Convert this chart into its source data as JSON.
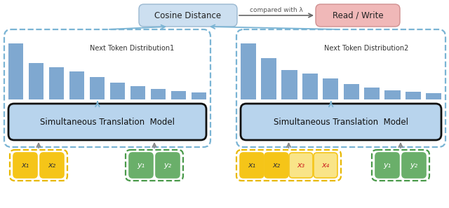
{
  "fig_width": 6.4,
  "fig_height": 2.97,
  "dpi": 100,
  "bg_color": "#ffffff",
  "dist1_bars": [
    0.95,
    0.62,
    0.55,
    0.48,
    0.38,
    0.28,
    0.22,
    0.18,
    0.14,
    0.12
  ],
  "dist2_bars": [
    0.95,
    0.7,
    0.5,
    0.44,
    0.36,
    0.26,
    0.2,
    0.16,
    0.13,
    0.11
  ],
  "bar_color": "#7fa8d0",
  "box_blue_model": "#b8d4ed",
  "box_yellow": "#f5c518",
  "box_yellow_light": "#f9e488",
  "box_green": "#6aaf6a",
  "box_green_light": "#c0e0c0",
  "dashed_blue": "#7ab4d4",
  "dashed_yellow": "#e8b800",
  "dashed_green": "#4a9a4a",
  "cosine_box_color": "#ccdff0",
  "cosine_edge_color": "#9ab8d0",
  "read_write_box_color": "#f0b8b8",
  "read_write_edge_color": "#d09090",
  "label_dist1": "Next Token Distribution1",
  "label_dist2": "Next Token Distribution2",
  "label_model": "Simultaneous Translation  Model",
  "label_cosine": "Cosine Distance",
  "label_read_write": "Read / Write",
  "label_compared": "compared with λ",
  "x_tokens_left": [
    "x₁",
    "x₂"
  ],
  "y_tokens_left": [
    "y₁",
    "y₂"
  ],
  "x_tokens_right": [
    "x₁",
    "x₂",
    "x₃",
    "x₄"
  ],
  "y_tokens_right": [
    "y₁",
    "y₂"
  ],
  "arrow_blue": "#7ab4d4",
  "arrow_gray": "#888888"
}
